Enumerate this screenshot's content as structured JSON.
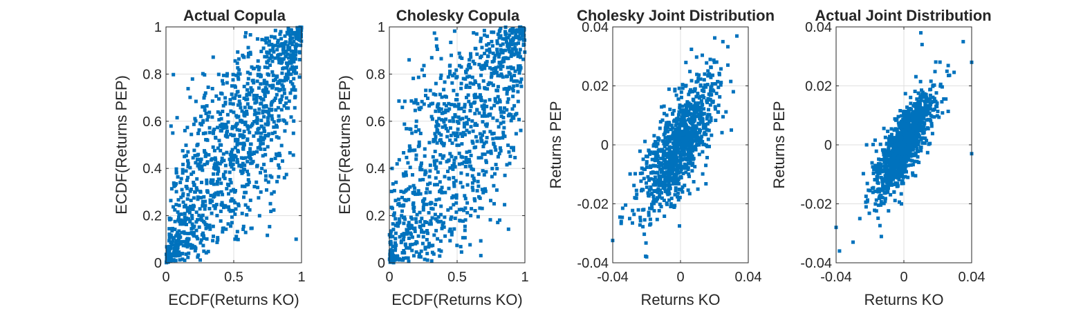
{
  "chart_data": [
    {
      "type": "scatter",
      "title": "Actual Copula",
      "xlabel": "ECDF(Returns KO)",
      "ylabel": "ECDF(Returns PEP)",
      "xlim": [
        0,
        1
      ],
      "ylim": [
        0,
        1
      ],
      "xticks": [
        0,
        0.5,
        1
      ],
      "yticks": [
        0,
        0.2,
        0.4,
        0.6,
        0.8,
        1
      ],
      "xtick_labels": [
        "0",
        "0.5",
        "1"
      ],
      "ytick_labels": [
        "0",
        "0.2",
        "0.4",
        "0.6",
        "0.8",
        "1"
      ],
      "grid": true,
      "marker_color": "#0072bd",
      "generator": {
        "kind": "copula",
        "rho": 0.82,
        "n": 1150,
        "seed": 11
      },
      "points": [
        [
          0.02,
          0.01
        ],
        [
          0.05,
          0.03
        ],
        [
          0.1,
          0.08
        ],
        [
          0.2,
          0.15
        ],
        [
          0.3,
          0.35
        ],
        [
          0.5,
          0.45
        ],
        [
          0.6,
          0.58
        ],
        [
          0.75,
          0.8
        ],
        [
          0.9,
          0.92
        ],
        [
          0.98,
          0.99
        ],
        [
          0.85,
          0.95
        ],
        [
          0.4,
          0.42
        ],
        [
          0.7,
          0.3
        ],
        [
          0.96,
          0.1
        ],
        [
          0.05,
          0.55
        ]
      ]
    },
    {
      "type": "scatter",
      "title": "Cholesky Copula",
      "xlabel": "ECDF(Returns KO)",
      "ylabel": "ECDF(Returns PEP)",
      "xlim": [
        0,
        1
      ],
      "ylim": [
        0,
        1
      ],
      "xticks": [
        0,
        0.5,
        1
      ],
      "yticks": [
        0,
        0.2,
        0.4,
        0.6,
        0.8,
        1
      ],
      "xtick_labels": [
        "0",
        "0.5",
        "1"
      ],
      "ytick_labels": [
        "0",
        "0.2",
        "0.4",
        "0.6",
        "0.8",
        "1"
      ],
      "grid": true,
      "marker_color": "#0072bd",
      "generator": {
        "kind": "copula",
        "rho": 0.72,
        "n": 1000,
        "seed": 23
      },
      "points": [
        [
          0.02,
          0.05
        ],
        [
          0.1,
          0.12
        ],
        [
          0.3,
          0.25
        ],
        [
          0.5,
          0.55
        ],
        [
          0.7,
          0.65
        ],
        [
          0.9,
          0.88
        ],
        [
          0.95,
          0.98
        ],
        [
          0.6,
          0.2
        ],
        [
          0.2,
          0.6
        ]
      ]
    },
    {
      "type": "scatter",
      "title": "Cholesky Joint Distribution",
      "xlabel": "Returns KO",
      "ylabel": "Returns PEP",
      "xlim": [
        -0.04,
        0.04
      ],
      "ylim": [
        -0.04,
        0.04
      ],
      "xticks": [
        -0.04,
        0,
        0.04
      ],
      "yticks": [
        -0.04,
        -0.02,
        0,
        0.02,
        0.04
      ],
      "xtick_labels": [
        "-0.04",
        "0",
        "0.04"
      ],
      "ytick_labels": [
        "-0.04",
        "-0.02",
        "0",
        "0.02",
        "0.04"
      ],
      "grid": true,
      "marker_color": "#0072bd",
      "generator": {
        "kind": "normal",
        "rho": 0.72,
        "sx": 0.011,
        "sy": 0.011,
        "n": 1000,
        "seed": 37
      },
      "points": [
        [
          -0.035,
          -0.026
        ],
        [
          -0.03,
          -0.025
        ],
        [
          0.0,
          0.0
        ],
        [
          0.02,
          0.028
        ],
        [
          0.025,
          0.035
        ],
        [
          -0.02,
          -0.038
        ],
        [
          0.03,
          0.005
        ]
      ]
    },
    {
      "type": "scatter",
      "title": "Actual Joint Distribution",
      "xlabel": "Returns KO",
      "ylabel": "Returns PEP",
      "xlim": [
        -0.04,
        0.04
      ],
      "ylim": [
        -0.04,
        0.04
      ],
      "xticks": [
        -0.04,
        0,
        0.04
      ],
      "yticks": [
        -0.04,
        -0.02,
        0,
        0.02,
        0.04
      ],
      "xtick_labels": [
        "-0.04",
        "0",
        "0.04"
      ],
      "ytick_labels": [
        "-0.04",
        "-0.02",
        "0",
        "0.02",
        "0.04"
      ],
      "grid": true,
      "marker_color": "#0072bd",
      "generator": {
        "kind": "normal",
        "rho": 0.8,
        "sx": 0.0085,
        "sy": 0.0085,
        "n": 1150,
        "seed": 51
      },
      "points": [
        [
          -0.04,
          -0.028
        ],
        [
          -0.038,
          -0.036
        ],
        [
          0.035,
          0.035
        ],
        [
          0.01,
          0.038
        ],
        [
          0.04,
          0.028
        ],
        [
          0.04,
          -0.003
        ],
        [
          -0.022,
          0.0
        ],
        [
          -0.03,
          -0.033
        ]
      ]
    }
  ]
}
